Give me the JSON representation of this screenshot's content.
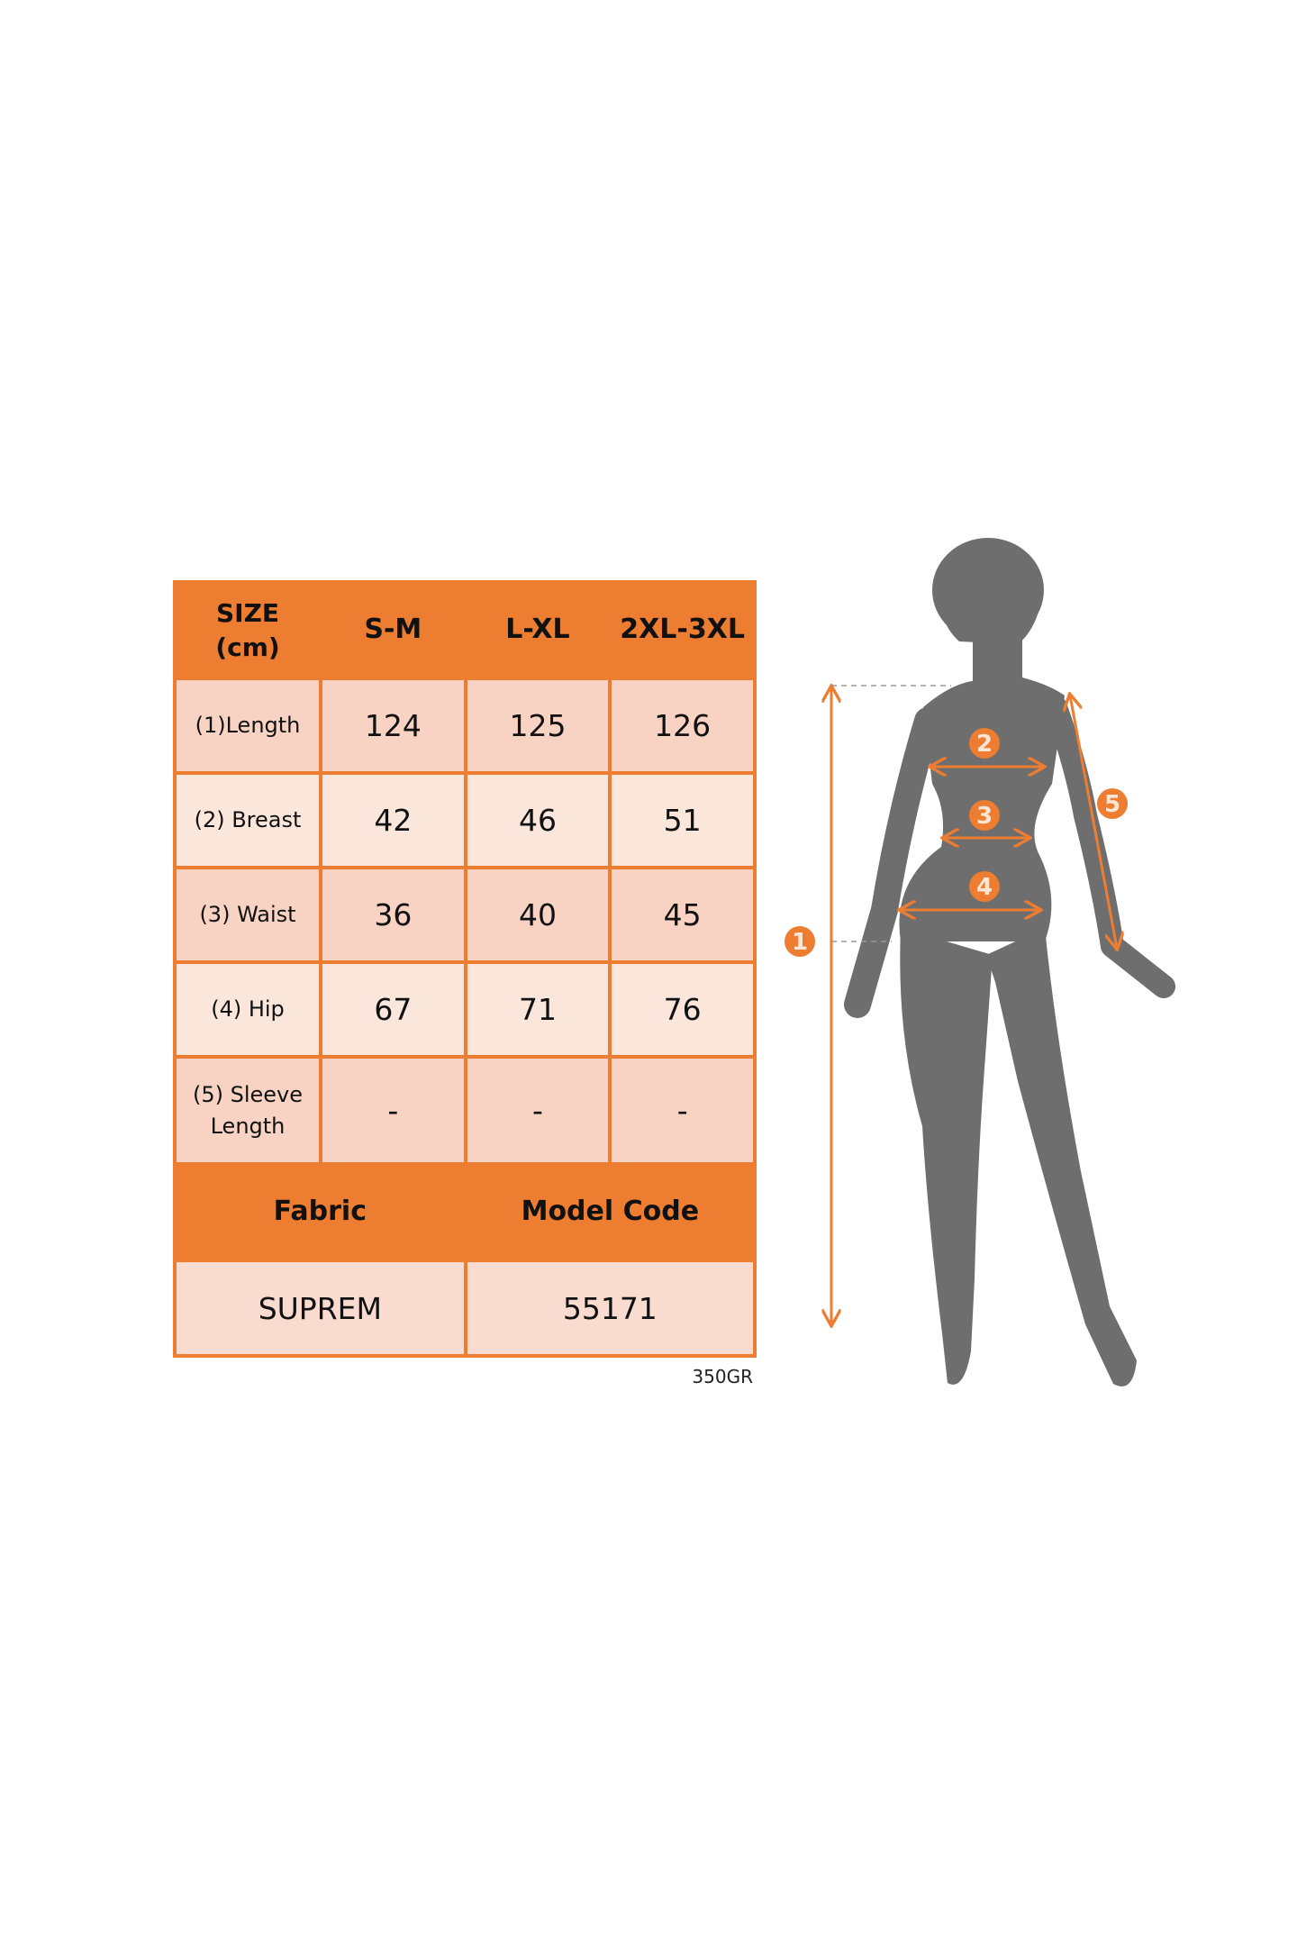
{
  "colors": {
    "accent": "#ed7d31",
    "silhouette": "#6e6e6e",
    "cell_dark": "#f8d3c4",
    "cell_light": "#fbe6dc"
  },
  "table": {
    "header": [
      "SIZE\n(cm)",
      "S-M",
      "L-XL",
      "2XL-3XL"
    ],
    "size_label_line1": "SIZE",
    "size_label_line2": "(cm)",
    "rows": [
      {
        "label": "(1)Length",
        "values": [
          "124",
          "125",
          "126"
        ]
      },
      {
        "label": "(2) Breast",
        "values": [
          "42",
          "46",
          "51"
        ]
      },
      {
        "label": "(3) Waist",
        "values": [
          "36",
          "40",
          "45"
        ]
      },
      {
        "label": "(4) Hip",
        "values": [
          "67",
          "71",
          "76"
        ]
      },
      {
        "label_line1": "(5) Sleeve",
        "label_line2": "Length",
        "values": [
          "-",
          "-",
          "-"
        ]
      }
    ],
    "footer_headers": [
      "Fabric",
      "Model Code"
    ],
    "footer_values": [
      "SUPREM",
      "55171"
    ]
  },
  "note": "350GR",
  "figure": {
    "markers": [
      "1",
      "2",
      "3",
      "4",
      "5"
    ]
  }
}
